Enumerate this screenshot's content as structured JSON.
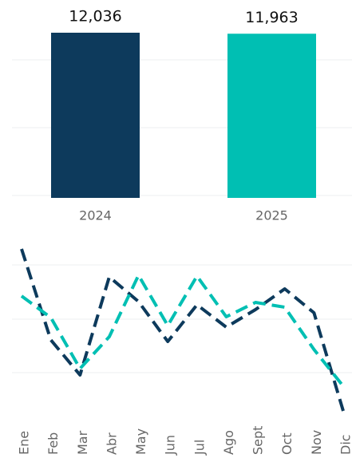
{
  "chart_data": [
    {
      "type": "bar",
      "categories": [
        "2024",
        "2025"
      ],
      "values": [
        12036,
        11963
      ],
      "value_labels": [
        "12,036",
        "11,963"
      ],
      "colors": [
        "#0d3a5c",
        "#00bfb3"
      ]
    },
    {
      "type": "line",
      "categories": [
        "Ene",
        "Feb",
        "Mar",
        "Abr",
        "May",
        "Jun",
        "Jul",
        "Ago",
        "Sept",
        "Oct",
        "Nov",
        "Dic"
      ],
      "series": [
        {
          "color": "#0d3a5c",
          "values": [
            288,
            174,
            130,
            253,
            222,
            172,
            218,
            190,
            212,
            238,
            208,
            85
          ]
        },
        {
          "color": "#00bfb3",
          "values": [
            229,
            202,
            138,
            178,
            255,
            192,
            254,
            203,
            221,
            215,
            162,
            116
          ]
        }
      ]
    }
  ]
}
